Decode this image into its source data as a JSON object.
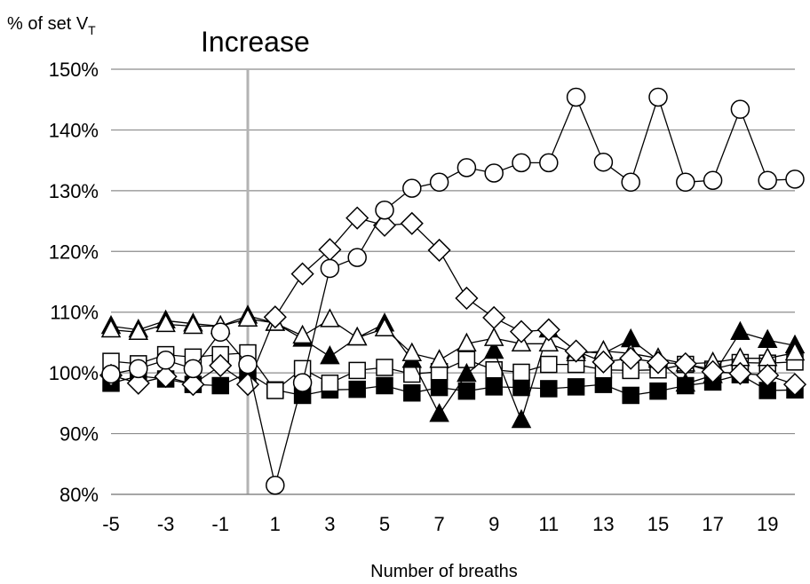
{
  "chart_data": {
    "type": "line",
    "title": "Increase",
    "xlabel": "Number of breaths",
    "ylabel": "% of set V",
    "ylabel_subscript": "T",
    "xlim": [
      -5,
      20
    ],
    "ylim": [
      80,
      150
    ],
    "x_ticks": [
      -5,
      -3,
      -1,
      1,
      3,
      5,
      7,
      9,
      11,
      13,
      15,
      17,
      19
    ],
    "y_ticks": [
      80,
      90,
      100,
      110,
      120,
      130,
      140,
      150
    ],
    "y_tick_labels": [
      "80%",
      "90%",
      "100%",
      "110%",
      "120%",
      "130%",
      "140%",
      "150%"
    ],
    "grid": "horizontal",
    "reference_line_x": 0,
    "x": [
      -5,
      -4,
      -3,
      -2,
      -1,
      0,
      1,
      2,
      3,
      4,
      5,
      6,
      7,
      8,
      9,
      10,
      11,
      12,
      13,
      14,
      15,
      16,
      17,
      18,
      19,
      20
    ],
    "series": [
      {
        "marker": "circle-open",
        "values": [
          99.8,
          100.7,
          102.1,
          100.7,
          106.7,
          101.4,
          81.5,
          98.4,
          117.2,
          119.0,
          126.8,
          130.4,
          131.4,
          133.8,
          132.9,
          134.6,
          134.6,
          145.4,
          134.7,
          131.4,
          145.4,
          131.4,
          131.7,
          143.4,
          131.7,
          131.9
        ]
      },
      {
        "marker": "diamond-open",
        "values": [
          99.6,
          98.3,
          99.4,
          98.1,
          101.2,
          98.1,
          109.2,
          116.3,
          120.3,
          125.5,
          124.3,
          124.6,
          120.2,
          112.3,
          109.1,
          106.8,
          107.1,
          103.6,
          101.8,
          102.4,
          101.7,
          101.5,
          100.2,
          99.9,
          99.6,
          98.1
        ]
      },
      {
        "marker": "triangle-open",
        "values": [
          107.1,
          106.7,
          108.0,
          107.7,
          107.7,
          108.9,
          108.2,
          106.1,
          108.8,
          105.8,
          107.3,
          103.2,
          102.1,
          104.8,
          105.7,
          104.8,
          104.8,
          103.2,
          103.6,
          103.2,
          102.4,
          101.5,
          101.7,
          102.4,
          102.4,
          103.3
        ]
      },
      {
        "marker": "triangle-filled",
        "values": [
          107.7,
          107.1,
          108.6,
          108.1,
          107.7,
          109.4,
          108.2,
          105.6,
          102.7,
          105.8,
          108.1,
          102.1,
          93.2,
          99.8,
          103.6,
          92.2,
          107.1,
          103.6,
          103.2,
          105.5,
          102.1,
          98.2,
          99.6,
          106.7,
          105.4,
          104.5
        ]
      },
      {
        "marker": "square-open",
        "values": [
          101.9,
          101.5,
          103.0,
          102.6,
          103.0,
          103.3,
          97.1,
          100.7,
          98.3,
          100.4,
          100.9,
          99.8,
          100.2,
          102.2,
          100.5,
          100.1,
          101.4,
          101.4,
          100.5,
          100.4,
          100.5,
          101.4,
          100.6,
          101.7,
          101.6,
          101.8
        ]
      },
      {
        "marker": "square-filled",
        "values": [
          98.3,
          99.5,
          99.0,
          98.1,
          97.9,
          100.0,
          97.2,
          96.3,
          97.2,
          97.3,
          97.9,
          96.7,
          97.6,
          97.0,
          97.7,
          97.6,
          97.4,
          97.7,
          98.1,
          96.3,
          97.0,
          97.9,
          98.5,
          99.7,
          97.1,
          97.2
        ]
      }
    ]
  }
}
